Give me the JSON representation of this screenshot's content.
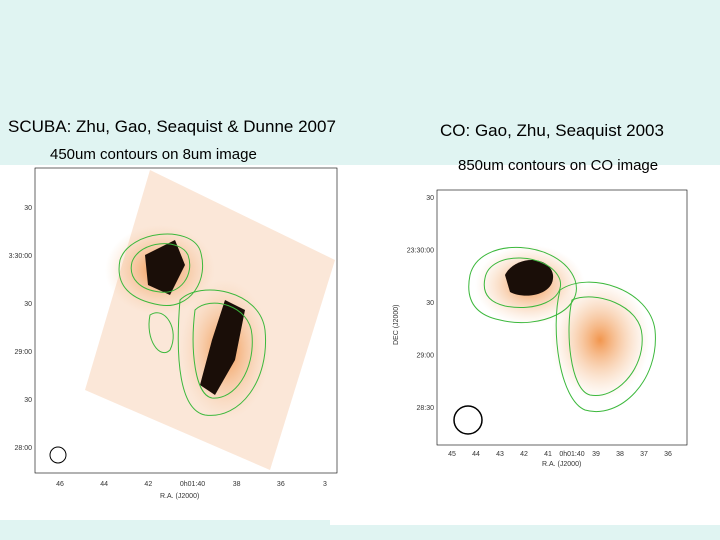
{
  "slide": {
    "left": {
      "title": "SCUBA: Zhu, Gao, Seaquist & Dunne 2007",
      "subtitle": "450um contours on 8um image",
      "yticks": [
        "30",
        "3:30:00",
        "30",
        "29:00",
        "30",
        "28:00"
      ],
      "xticks": [
        "46",
        "44",
        "42",
        "0h01:40",
        "38",
        "36",
        "3"
      ],
      "xlabel": "R.A. (J2000)"
    },
    "right": {
      "title": "CO: Gao, Zhu, Seaquist 2003",
      "subtitle": "850um contours on CO image",
      "yticks": [
        "30",
        "23:30:00",
        "30",
        "29:00",
        "28:30"
      ],
      "xticks": [
        "45",
        "44",
        "43",
        "42",
        "41",
        "0h01:40",
        "39",
        "38",
        "37",
        "36"
      ],
      "xlabel": "R.A. (J2000)",
      "ylabel": "DEC (J2000)"
    }
  }
}
